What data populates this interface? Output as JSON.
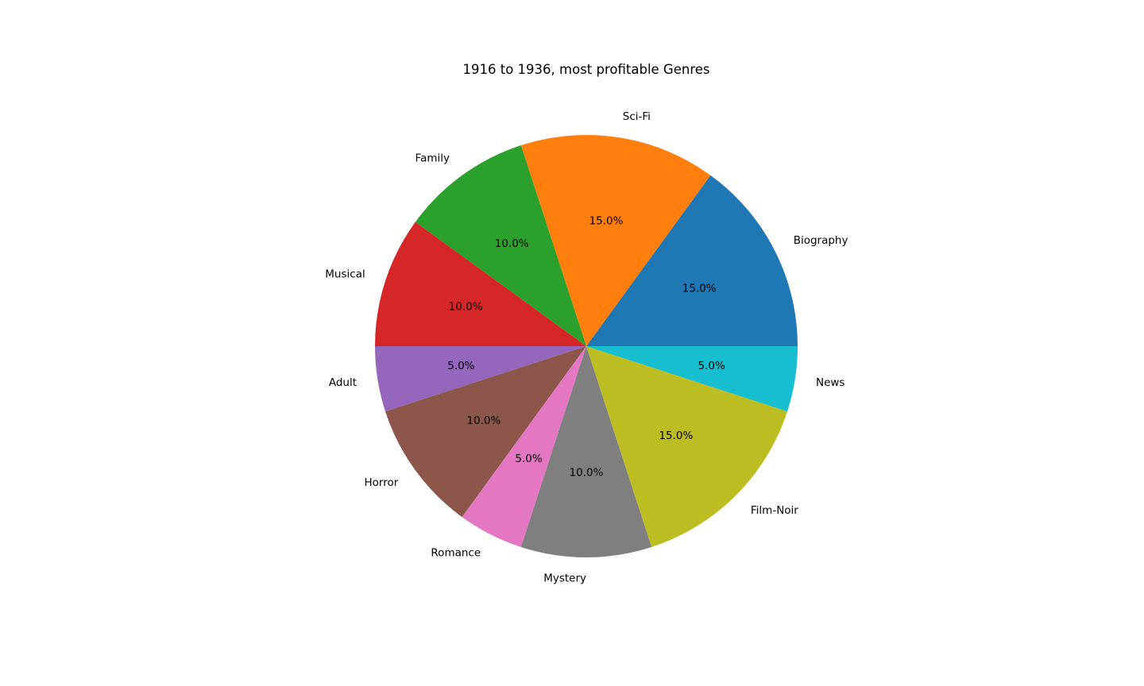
{
  "chart_data": {
    "type": "pie",
    "title": "1916 to 1936, most profitable Genres",
    "start_angle_deg": 0,
    "direction": "counterclockwise",
    "slices": [
      {
        "label": "Biography",
        "value": 15.0,
        "pct_label": "15.0%",
        "color": "#1f77b4"
      },
      {
        "label": "Sci-Fi",
        "value": 15.0,
        "pct_label": "15.0%",
        "color": "#ff7f0e"
      },
      {
        "label": "Family",
        "value": 10.0,
        "pct_label": "10.0%",
        "color": "#2ca02c"
      },
      {
        "label": "Musical",
        "value": 10.0,
        "pct_label": "10.0%",
        "color": "#d62728"
      },
      {
        "label": "Adult",
        "value": 5.0,
        "pct_label": "5.0%",
        "color": "#9467bd"
      },
      {
        "label": "Horror",
        "value": 10.0,
        "pct_label": "10.0%",
        "color": "#8c564b"
      },
      {
        "label": "Romance",
        "value": 5.0,
        "pct_label": "5.0%",
        "color": "#e377c2"
      },
      {
        "label": "Mystery",
        "value": 10.0,
        "pct_label": "10.0%",
        "color": "#7f7f7f"
      },
      {
        "label": "Film-Noir",
        "value": 15.0,
        "pct_label": "15.0%",
        "color": "#bcbd22"
      },
      {
        "label": "News",
        "value": 5.0,
        "pct_label": "5.0%",
        "color": "#17becf"
      }
    ]
  }
}
